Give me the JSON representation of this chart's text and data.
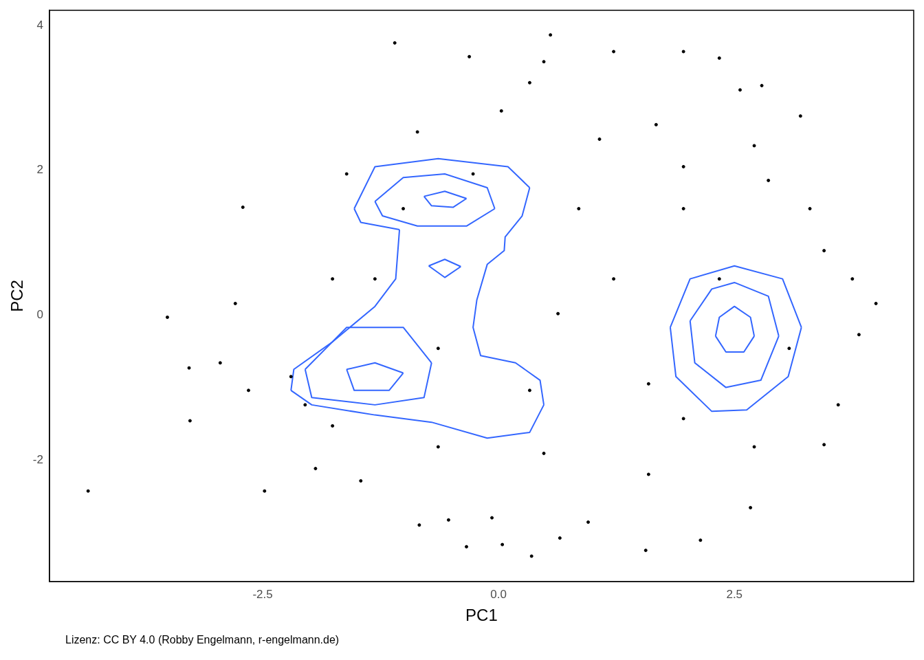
{
  "chart_data": {
    "type": "scatter",
    "xlabel": "PC1",
    "ylabel": "PC2",
    "xlim": [
      -4.76,
      4.4
    ],
    "ylim": [
      -3.68,
      4.21
    ],
    "xticks": [
      {
        "value": -2.5,
        "label": "-2.5"
      },
      {
        "value": 0,
        "label": "0.0"
      },
      {
        "value": 2.5,
        "label": "2.5"
      }
    ],
    "yticks": [
      -2,
      0,
      2,
      4
    ],
    "grid": false,
    "legend": false,
    "annotations": [
      "Lizenz: CC BY 4.0 (Robby Engelmann, r-engelmann.de)"
    ],
    "series": [
      {
        "color": "#000000",
        "marker": "circle",
        "x": [
          -4.35,
          -3.51,
          -2.71,
          -2.48,
          -3.28,
          -3.27,
          -2.79,
          -1.94,
          -1.46,
          -1.1,
          -0.84,
          -0.53,
          -0.34,
          0.04,
          0.35,
          0.65,
          0.95,
          1.56,
          2.14,
          2.67,
          4.0,
          3.2,
          0.55,
          2.79,
          -0.31,
          -0.07,
          3.45,
          -2.2,
          -1.76,
          -1.61,
          -0.86,
          0.03,
          0.48,
          1.22,
          1.96,
          2.34,
          1.96,
          2.86,
          3.45,
          3.82,
          3.6,
          2.71,
          1.59,
          0.48,
          -0.64,
          -1.76,
          0.85,
          1.22,
          0.63,
          1.59,
          2.71,
          1.67,
          1.07,
          -1.01,
          -1.31,
          -0.64,
          0.33,
          1.96,
          2.34,
          3.08,
          1.96,
          -0.27,
          -2.05,
          -2.65,
          -2.95,
          3.75,
          3.3,
          0.33,
          2.56
        ],
        "values": [
          -2.43,
          -0.03,
          1.49,
          -2.43,
          -0.73,
          -1.46,
          0.16,
          -2.12,
          -2.29,
          3.76,
          -2.9,
          -2.83,
          -3.2,
          -3.17,
          -3.33,
          -3.08,
          -2.86,
          -3.25,
          -3.11,
          -2.66,
          0.16,
          2.75,
          3.87,
          3.17,
          3.57,
          -2.8,
          -1.79,
          -0.85,
          0.5,
          1.95,
          2.53,
          2.82,
          3.5,
          3.64,
          3.64,
          3.55,
          2.05,
          1.86,
          0.89,
          -0.27,
          -1.24,
          -1.82,
          -2.2,
          -1.91,
          -1.82,
          -1.53,
          1.47,
          0.5,
          0.02,
          -0.95,
          2.34,
          2.63,
          2.43,
          1.47,
          0.5,
          -0.46,
          -1.04,
          1.47,
          0.5,
          -0.46,
          -1.43,
          1.95,
          -1.24,
          -1.04,
          -0.66,
          0.5,
          1.47,
          3.21,
          3.11
        ]
      },
      {
        "type": "line",
        "color": "#3366ff",
        "x": [
          -1.53,
          -1.31,
          -0.64,
          0.1,
          0.33
        ],
        "values": [
          1.47,
          2.05,
          2.16,
          2.05,
          1.76
        ]
      },
      {
        "type": "line",
        "color": "#3366ff",
        "x": [
          0.33,
          0.25,
          0.07,
          0.06,
          -0.12,
          -0.23,
          -0.27,
          -0.19,
          0.18,
          0.44,
          0.48
        ],
        "values": [
          1.76,
          1.37,
          1.08,
          0.89,
          0.7,
          0.21,
          -0.17,
          -0.56,
          -0.66,
          -0.9,
          -1.24
        ]
      },
      {
        "type": "line",
        "color": "#3366ff",
        "x": [
          -2.2,
          -1.98,
          -1.31,
          -0.71,
          -0.12,
          0.33,
          0.48
        ],
        "values": [
          -1.04,
          -1.24,
          -1.38,
          -1.48,
          -1.7,
          -1.62,
          -1.24
        ]
      },
      {
        "type": "line",
        "color": "#3366ff",
        "x": [
          -2.2,
          -2.17,
          -1.76,
          -1.31,
          -1.09,
          -1.05
        ],
        "values": [
          -1.04,
          -0.75,
          -0.37,
          0.12,
          0.5,
          1.18
        ]
      },
      {
        "type": "line",
        "color": "#3366ff",
        "x": [
          -1.53,
          -1.46,
          -1.05
        ],
        "values": [
          1.47,
          1.28,
          1.18
        ]
      },
      {
        "type": "line",
        "color": "#3366ff",
        "x": [
          -1.31,
          -1.01,
          -0.57,
          -0.12,
          -0.04
        ],
        "values": [
          1.57,
          1.9,
          1.95,
          1.76,
          1.47
        ]
      },
      {
        "type": "line",
        "color": "#3366ff",
        "x": [
          -1.31,
          -1.23,
          -0.86,
          -0.34,
          -0.04
        ],
        "values": [
          1.57,
          1.37,
          1.23,
          1.23,
          1.47
        ]
      },
      {
        "type": "line",
        "color": "#3366ff",
        "x": [
          -0.79,
          -0.57,
          -0.34
        ],
        "values": [
          1.64,
          1.71,
          1.61
        ]
      },
      {
        "type": "line",
        "color": "#3366ff",
        "x": [
          -0.79,
          -0.71,
          -0.48,
          -0.34
        ],
        "values": [
          1.64,
          1.51,
          1.49,
          1.61
        ]
      },
      {
        "type": "line",
        "color": "#3366ff",
        "x": [
          -0.74,
          -0.57,
          -0.4
        ],
        "values": [
          0.68,
          0.77,
          0.67
        ]
      },
      {
        "type": "line",
        "color": "#3366ff",
        "x": [
          -0.74,
          -0.57,
          -0.4
        ],
        "values": [
          0.68,
          0.52,
          0.67
        ]
      },
      {
        "type": "line",
        "color": "#3366ff",
        "x": [
          -2.05,
          -1.61,
          -1.01,
          -0.71
        ],
        "values": [
          -0.75,
          -0.17,
          -0.17,
          -0.66
        ]
      },
      {
        "type": "line",
        "color": "#3366ff",
        "x": [
          -2.05,
          -1.98,
          -1.31,
          -0.79,
          -0.71
        ],
        "values": [
          -0.75,
          -1.14,
          -1.24,
          -1.14,
          -0.66
        ]
      },
      {
        "type": "line",
        "color": "#3366ff",
        "x": [
          -1.61,
          -1.31,
          -1.01
        ],
        "values": [
          -0.75,
          -0.66,
          -0.8
        ]
      },
      {
        "type": "line",
        "color": "#3366ff",
        "x": [
          -1.61,
          -1.53,
          -1.16,
          -1.01
        ],
        "values": [
          -0.75,
          -1.04,
          -1.04,
          -0.8
        ]
      },
      {
        "type": "line",
        "color": "#3366ff",
        "x": [
          1.82,
          2.03,
          2.5,
          3.01,
          3.21
        ],
        "values": [
          -0.17,
          0.5,
          0.68,
          0.5,
          -0.17
        ]
      },
      {
        "type": "line",
        "color": "#3366ff",
        "x": [
          1.82,
          1.88,
          2.26,
          2.63,
          3.07,
          3.21
        ],
        "values": [
          -0.17,
          -0.85,
          -1.33,
          -1.31,
          -0.85,
          -0.17
        ]
      },
      {
        "type": "line",
        "color": "#3366ff",
        "x": [
          2.03,
          2.26,
          2.5,
          2.86,
          2.97
        ],
        "values": [
          -0.08,
          0.36,
          0.45,
          0.26,
          -0.29
        ]
      },
      {
        "type": "line",
        "color": "#3366ff",
        "x": [
          2.03,
          2.08,
          2.41,
          2.78,
          2.97
        ],
        "values": [
          -0.08,
          -0.66,
          -1.0,
          -0.9,
          -0.29
        ]
      },
      {
        "type": "line",
        "color": "#3366ff",
        "x": [
          2.3,
          2.34,
          2.5,
          2.67,
          2.71
        ],
        "values": [
          -0.29,
          -0.03,
          0.12,
          -0.03,
          -0.29
        ]
      },
      {
        "type": "line",
        "color": "#3366ff",
        "x": [
          2.3,
          2.41,
          2.6,
          2.71
        ],
        "values": [
          -0.29,
          -0.51,
          -0.51,
          -0.29
        ]
      }
    ]
  }
}
